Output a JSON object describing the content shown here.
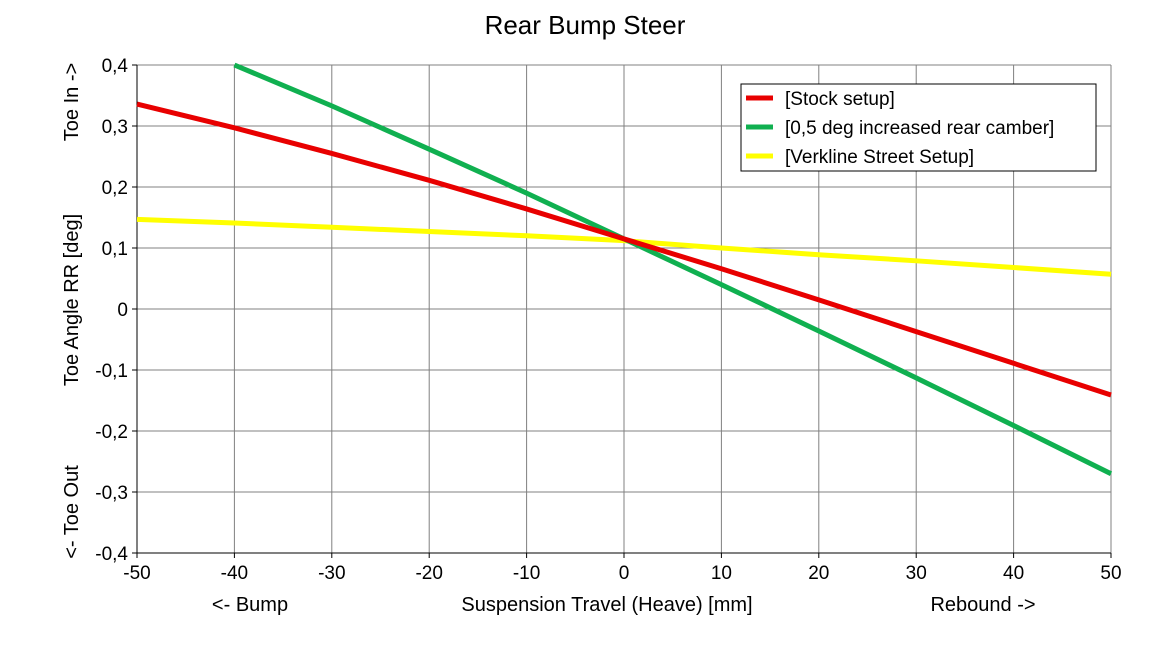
{
  "chart_data": {
    "type": "line",
    "title": "Rear Bump Steer",
    "xlabel": "Suspension Travel (Heave) [mm]",
    "xlabel_left": "<- Bump",
    "xlabel_right": "Rebound ->",
    "ylabel": "Toe Angle RR [deg]",
    "ylabel_top": "Toe In ->",
    "ylabel_bottom": "<- Toe Out",
    "xlim": [
      -50,
      50
    ],
    "ylim": [
      -0.4,
      0.4
    ],
    "x_ticks": [
      -50,
      -40,
      -30,
      -20,
      -10,
      0,
      10,
      20,
      30,
      40,
      50
    ],
    "x_tick_labels": [
      "-50",
      "-40",
      "-30",
      "-20",
      "-10",
      "0",
      "10",
      "20",
      "30",
      "40",
      "50"
    ],
    "y_ticks": [
      0.4,
      0.3,
      0.2,
      0.1,
      0,
      -0.1,
      -0.2,
      -0.3,
      -0.4
    ],
    "y_tick_labels": [
      "0,4",
      "0,3",
      "0,2",
      "0,1",
      "0",
      "-0,1",
      "-0,2",
      "-0,3",
      "-0,4"
    ],
    "grid": true,
    "legend_position": "top-right",
    "series": [
      {
        "name": "[Stock setup]",
        "color": "#e80000",
        "x": [
          -50,
          -40,
          -30,
          -20,
          -10,
          0,
          10,
          20,
          30,
          40,
          50
        ],
        "y": [
          0.336,
          0.297,
          0.255,
          0.211,
          0.164,
          0.115,
          0.066,
          0.015,
          -0.037,
          -0.089,
          -0.141
        ]
      },
      {
        "name": "[0,5 deg increased rear camber]",
        "color": "#10b050",
        "x": [
          -40,
          -30,
          -20,
          -10,
          0,
          10,
          20,
          30,
          40,
          50
        ],
        "y": [
          0.4,
          0.333,
          0.262,
          0.19,
          0.115,
          0.04,
          -0.036,
          -0.113,
          -0.191,
          -0.27
        ]
      },
      {
        "name": "[Verkline Street Setup]",
        "color": "#ffff00",
        "x": [
          -50,
          -40,
          -30,
          -20,
          -10,
          0,
          10,
          20,
          30,
          40,
          50
        ],
        "y": [
          0.147,
          0.141,
          0.134,
          0.127,
          0.12,
          0.112,
          0.1,
          0.089,
          0.079,
          0.068,
          0.057
        ]
      }
    ]
  }
}
